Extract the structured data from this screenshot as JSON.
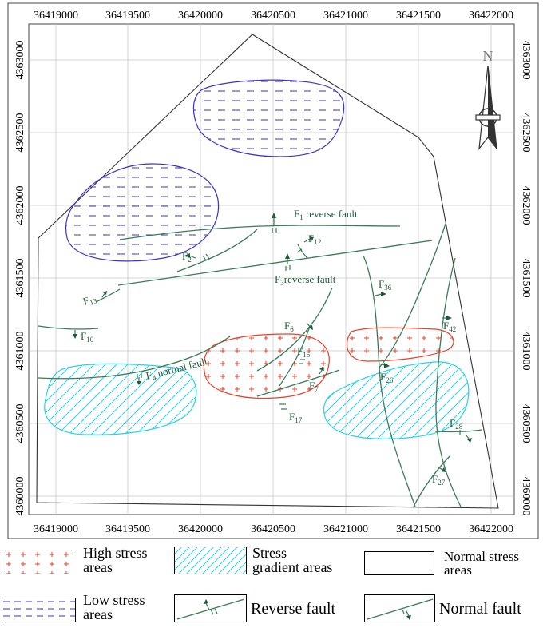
{
  "map": {
    "x_ticks": [
      "36419000",
      "36419500",
      "36420000",
      "36420500",
      "36421000",
      "36421500",
      "36422000"
    ],
    "y_ticks": [
      "4363000",
      "4362500",
      "4362000",
      "4361500",
      "4361000",
      "4360500",
      "4360000"
    ],
    "north_label": "N",
    "colors": {
      "fault": "#3a7a56",
      "high": "#e8402a",
      "low": "#3a32c8",
      "gradient": "#2ad2e6",
      "grid": "#c8c8c8",
      "boundary": "#333333"
    },
    "fault_labels": {
      "f1": {
        "letter": "F",
        "sub": "1",
        "text": " reverse fault"
      },
      "f12": {
        "letter": "F",
        "sub": "12",
        "text": ""
      },
      "f2": {
        "letter": "F",
        "sub": "2",
        "text": ""
      },
      "f3": {
        "letter": "F",
        "sub": "3",
        "text": "reverse fault"
      },
      "f13": {
        "letter": "F",
        "sub": "13",
        "text": ""
      },
      "f36": {
        "letter": "F",
        "sub": "36",
        "text": ""
      },
      "f10": {
        "letter": "F",
        "sub": "10",
        "text": ""
      },
      "f6": {
        "letter": "F",
        "sub": "6",
        "text": ""
      },
      "f42": {
        "letter": "F",
        "sub": "42",
        "text": ""
      },
      "f15": {
        "letter": "F",
        "sub": "15",
        "text": ""
      },
      "f4": {
        "letter": "F",
        "sub": "4",
        "text": "  normal fault"
      },
      "f26": {
        "letter": "F",
        "sub": "26",
        "text": ""
      },
      "f7": {
        "letter": "F",
        "sub": "7",
        "text": ""
      },
      "f17": {
        "letter": "F",
        "sub": "17",
        "text": ""
      },
      "f28": {
        "letter": "F",
        "sub": "28",
        "text": ""
      },
      "f27": {
        "letter": "F",
        "sub": "27",
        "text": ""
      }
    }
  },
  "legend": {
    "high_stress": [
      "High stress",
      "areas"
    ],
    "stress_gradient": [
      "Stress",
      "gradient areas"
    ],
    "normal_stress": [
      "Normal stress",
      "areas"
    ],
    "low_stress": [
      "Low stress",
      "areas"
    ],
    "reverse_fault": "Reverse fault",
    "normal_fault": "Normal fault"
  }
}
